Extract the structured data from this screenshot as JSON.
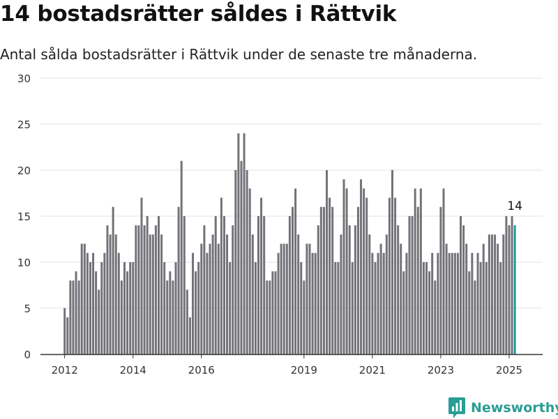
{
  "title": "14 bostadsrätter såldes i Rättvik",
  "subtitle": "Antal sålda bostadsrätter i Rättvik under de senaste tre månaderna.",
  "brand": {
    "name": "Newsworthy",
    "icon": "newsworthy-logo-icon"
  },
  "colors": {
    "bar": "#737278",
    "highlight": "#1a9a99",
    "grid": "#e1e1e1",
    "brand": "#2a9d94"
  },
  "chart_data": {
    "type": "bar",
    "title": "14 bostadsrätter såldes i Rättvik",
    "subtitle": "Antal sålda bostadsrätter i Rättvik under de senaste tre månaderna.",
    "ylim": [
      0,
      30
    ],
    "yticks": [
      "0",
      "5",
      "10",
      "15",
      "20",
      "25",
      "30"
    ],
    "xticks": [
      {
        "label": "2012",
        "index": 0
      },
      {
        "label": "2014",
        "index": 24
      },
      {
        "label": "2016",
        "index": 48
      },
      {
        "label": "2019",
        "index": 84
      },
      {
        "label": "2021",
        "index": 108
      },
      {
        "label": "2023",
        "index": 132
      },
      {
        "label": "2025",
        "index": 156
      }
    ],
    "grid": true,
    "start": "2012-01",
    "frequency": "monthly",
    "values": [
      5,
      4,
      8,
      8,
      9,
      8,
      12,
      12,
      11,
      10,
      11,
      9,
      7,
      10,
      11,
      14,
      13,
      16,
      13,
      11,
      8,
      10,
      9,
      10,
      10,
      14,
      14,
      17,
      14,
      15,
      13,
      13,
      14,
      15,
      13,
      10,
      8,
      9,
      8,
      10,
      16,
      21,
      15,
      7,
      4,
      11,
      9,
      10,
      12,
      14,
      11,
      12,
      13,
      15,
      12,
      17,
      15,
      13,
      10,
      14,
      20,
      24,
      21,
      24,
      20,
      18,
      13,
      10,
      15,
      17,
      15,
      8,
      8,
      9,
      9,
      11,
      12,
      12,
      12,
      15,
      16,
      18,
      13,
      10,
      8,
      12,
      12,
      11,
      11,
      14,
      16,
      16,
      20,
      17,
      16,
      10,
      10,
      13,
      19,
      18,
      14,
      10,
      14,
      16,
      19,
      18,
      17,
      13,
      11,
      10,
      11,
      12,
      11,
      13,
      17,
      20,
      17,
      14,
      12,
      9,
      11,
      15,
      15,
      18,
      16,
      18,
      10,
      10,
      9,
      11,
      8,
      11,
      16,
      18,
      12,
      11,
      11,
      11,
      11,
      15,
      14,
      12,
      9,
      11,
      8,
      11,
      10,
      12,
      10,
      13,
      13,
      13,
      12,
      10,
      13,
      15,
      14,
      15,
      14
    ],
    "highlight_index": 158,
    "annotation": {
      "index": 158,
      "text": "14"
    }
  }
}
